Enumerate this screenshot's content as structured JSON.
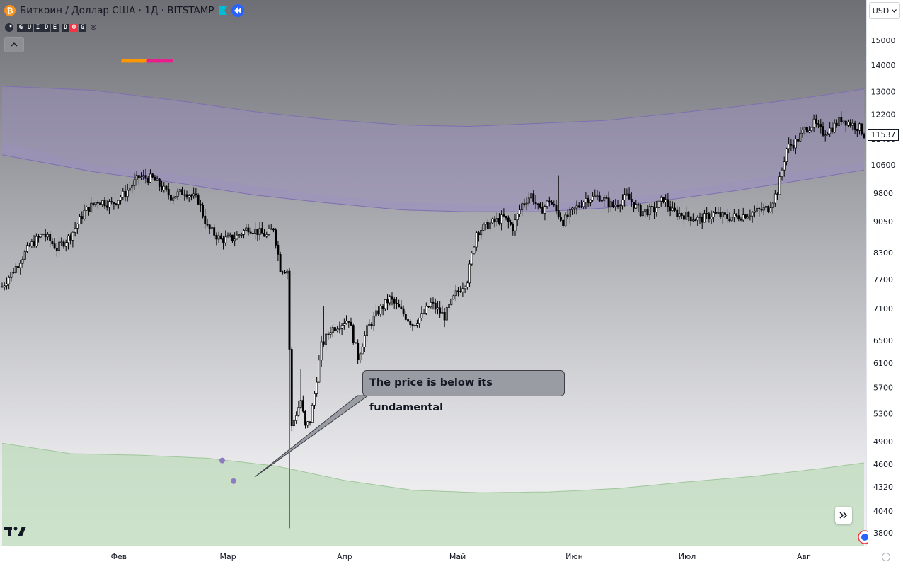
{
  "header": {
    "symbol_title": "Биткоин / Доллар США · 1Д · BITSTAMP",
    "indicator_letters": [
      "G",
      "U",
      "I",
      "D",
      "E",
      "D",
      "O",
      "G"
    ],
    "indicator_suffix": "®"
  },
  "currency_select": {
    "value": "USD"
  },
  "callout": {
    "text": "The price is below its fundamental"
  },
  "colors": {
    "upper_band": "#9b8fc0",
    "lower_band": "#b7d8b4",
    "candle": "#000000",
    "marker": "#8e7cc3",
    "dots_orange": "#ff9800",
    "dots_pink": "#e91e8c",
    "flag": "#00bcd4",
    "replay": "#2962ff"
  },
  "chart_data": {
    "type": "candlestick",
    "title": "Биткоин / Доллар США · 1Д · BITSTAMP",
    "scale": "log",
    "ylim": [
      3650,
      16000
    ],
    "price_ticks": [
      15000,
      14000,
      13000,
      12200,
      11400,
      10600,
      9800,
      9050,
      8300,
      7700,
      7100,
      6500,
      6100,
      5700,
      5300,
      4900,
      4600,
      4320,
      4040,
      3800
    ],
    "last_price": 11537,
    "x_labels": [
      "Фев",
      "Мар",
      "Апр",
      "Май",
      "Июн",
      "Июл",
      "Авг"
    ],
    "x_label_days": [
      31,
      60,
      91,
      121,
      152,
      182,
      213
    ],
    "x_range_days": [
      0,
      229
    ],
    "close_waypoints": [
      [
        0,
        7550
      ],
      [
        5,
        7900
      ],
      [
        12,
        8450
      ],
      [
        18,
        8750
      ],
      [
        24,
        8400
      ],
      [
        30,
        8700
      ],
      [
        36,
        9300
      ],
      [
        42,
        9600
      ],
      [
        48,
        9500
      ],
      [
        54,
        9800
      ],
      [
        60,
        10250
      ],
      [
        66,
        10200
      ],
      [
        70,
        9950
      ],
      [
        74,
        9700
      ],
      [
        80,
        9850
      ],
      [
        86,
        9600
      ],
      [
        90,
        8900
      ],
      [
        96,
        8600
      ],
      [
        102,
        8650
      ],
      [
        108,
        8900
      ],
      [
        112,
        8800
      ],
      [
        116,
        8700
      ],
      [
        119,
        8900
      ],
      [
        122,
        7950
      ],
      [
        125,
        7900
      ],
      [
        127,
        5100
      ],
      [
        129,
        5300
      ],
      [
        131,
        5500
      ],
      [
        133,
        5100
      ],
      [
        135,
        5200
      ],
      [
        137,
        5600
      ],
      [
        140,
        6400
      ],
      [
        144,
        6700
      ],
      [
        148,
        6800
      ],
      [
        152,
        6900
      ],
      [
        156,
        6200
      ],
      [
        160,
        6700
      ],
      [
        165,
        7050
      ],
      [
        170,
        7300
      ],
      [
        176,
        7000
      ],
      [
        180,
        6800
      ],
      [
        184,
        6950
      ],
      [
        188,
        7200
      ],
      [
        194,
        6950
      ],
      [
        199,
        7400
      ],
      [
        204,
        7700
      ],
      [
        208,
        8800
      ],
      [
        214,
        9000
      ],
      [
        220,
        9150
      ],
      [
        224,
        8900
      ],
      [
        228,
        9500
      ],
      [
        232,
        9750
      ],
      [
        236,
        9300
      ],
      [
        240,
        9600
      ],
      [
        246,
        9050
      ],
      [
        250,
        9300
      ],
      [
        256,
        9650
      ],
      [
        262,
        9700
      ],
      [
        268,
        9450
      ],
      [
        274,
        9700
      ],
      [
        280,
        9300
      ],
      [
        286,
        9350
      ],
      [
        290,
        9650
      ],
      [
        294,
        9300
      ],
      [
        300,
        9200
      ],
      [
        306,
        9100
      ],
      [
        312,
        9250
      ],
      [
        318,
        9150
      ],
      [
        324,
        9200
      ],
      [
        330,
        9300
      ],
      [
        336,
        9400
      ],
      [
        340,
        9850
      ],
      [
        344,
        11100
      ],
      [
        348,
        11300
      ],
      [
        352,
        11700
      ],
      [
        356,
        11900
      ],
      [
        360,
        11600
      ],
      [
        364,
        11750
      ],
      [
        368,
        12050
      ],
      [
        372,
        11900
      ],
      [
        376,
        11750
      ],
      [
        378,
        11537
      ]
    ],
    "upper_band_top": [
      [
        0,
        13200
      ],
      [
        40,
        13050
      ],
      [
        80,
        12650
      ],
      [
        110,
        12300
      ],
      [
        140,
        12050
      ],
      [
        175,
        11850
      ],
      [
        205,
        11800
      ],
      [
        235,
        11900
      ],
      [
        265,
        12000
      ],
      [
        290,
        12200
      ],
      [
        320,
        12450
      ],
      [
        350,
        12750
      ],
      [
        378,
        13100
      ]
    ],
    "upper_band_mid": [
      [
        0,
        11300
      ],
      [
        40,
        10600
      ],
      [
        80,
        10300
      ],
      [
        110,
        10000
      ],
      [
        140,
        9750
      ],
      [
        175,
        9550
      ],
      [
        205,
        9500
      ],
      [
        235,
        9500
      ],
      [
        265,
        9600
      ],
      [
        290,
        9800
      ],
      [
        320,
        10100
      ],
      [
        350,
        10400
      ],
      [
        378,
        10650
      ]
    ],
    "upper_band_bottom": [
      [
        0,
        10900
      ],
      [
        40,
        10400
      ],
      [
        80,
        10050
      ],
      [
        110,
        9750
      ],
      [
        140,
        9550
      ],
      [
        175,
        9350
      ],
      [
        205,
        9300
      ],
      [
        235,
        9300
      ],
      [
        265,
        9400
      ],
      [
        290,
        9600
      ],
      [
        320,
        9850
      ],
      [
        350,
        10150
      ],
      [
        378,
        10450
      ]
    ],
    "lower_band_top": [
      [
        0,
        4880
      ],
      [
        30,
        4740
      ],
      [
        60,
        4720
      ],
      [
        90,
        4680
      ],
      [
        120,
        4580
      ],
      [
        150,
        4400
      ],
      [
        180,
        4280
      ],
      [
        210,
        4250
      ],
      [
        240,
        4260
      ],
      [
        270,
        4300
      ],
      [
        300,
        4380
      ],
      [
        330,
        4450
      ],
      [
        360,
        4550
      ],
      [
        378,
        4620
      ]
    ],
    "markers": [
      [
        96.5,
        4650
      ],
      [
        101.5,
        4390
      ]
    ],
    "legend": [
      "GUIDEDOG"
    ]
  }
}
